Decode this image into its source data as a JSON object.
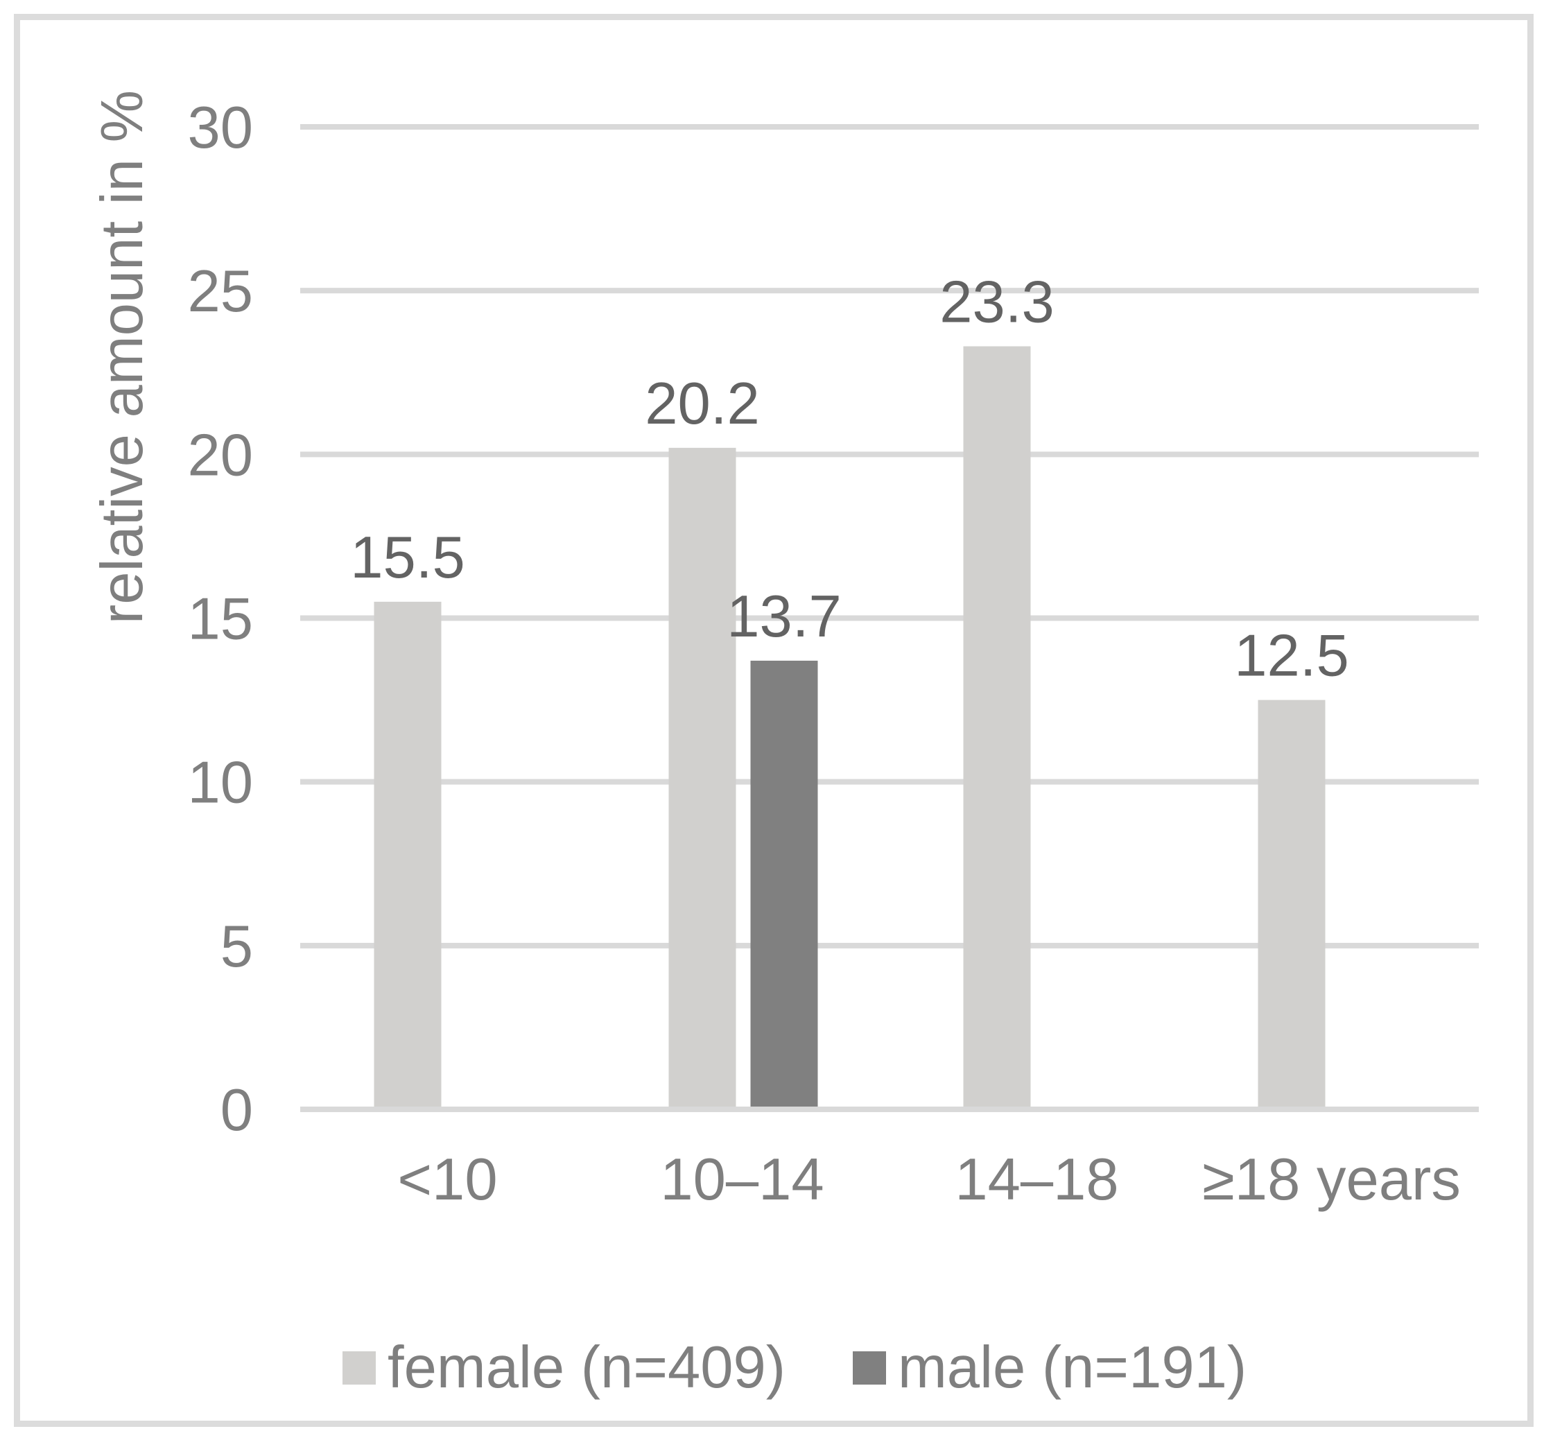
{
  "chart_data": {
    "type": "bar",
    "title": "",
    "xlabel": "",
    "ylabel": "relative amount in %",
    "categories": [
      "<10",
      "10–14",
      "14–18",
      "≥18 years"
    ],
    "series": [
      {
        "name": "female (n=409)",
        "color": "#d1d0ce",
        "values": [
          15.5,
          20.2,
          23.3,
          12.5
        ]
      },
      {
        "name": "male (n=191)",
        "color": "#808080",
        "values": [
          null,
          13.7,
          null,
          null
        ]
      }
    ],
    "data_labels": true,
    "ylim": [
      0,
      30
    ],
    "yticks": [
      0,
      5,
      10,
      15,
      20,
      25,
      30
    ],
    "grid": true,
    "legend_position": "bottom"
  },
  "colors": {
    "female_bar": "#d1d0ce",
    "male_bar": "#808080",
    "gridline": "#d9d9d9",
    "frame_border": "#dcdcdc",
    "axis_text": "#7f7f7f",
    "data_label_text": "#636363",
    "background": "#ffffff"
  }
}
